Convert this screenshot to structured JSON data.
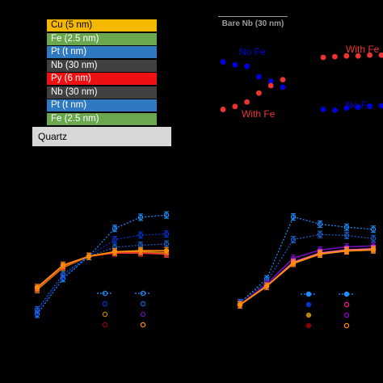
{
  "stack": [
    {
      "label": "Cu (5 nm)",
      "color": "#f5b800",
      "text_color": "#000000"
    },
    {
      "label": "Fe (2.5 nm)",
      "color": "#6aa84f",
      "text_color": "#ffffff"
    },
    {
      "label": "Pt (t nm)",
      "color": "#2f79c0",
      "text_color": "#ffffff"
    },
    {
      "label": "Nb (30 nm)",
      "color": "#404040",
      "text_color": "#ffffff"
    },
    {
      "label": "Py (6 nm)",
      "color": "#ee1111",
      "text_color": "#ffffff"
    },
    {
      "label": "Nb (30 nm)",
      "color": "#404040",
      "text_color": "#ffffff"
    },
    {
      "label": "Pt (t nm)",
      "color": "#2f79c0",
      "text_color": "#ffffff"
    },
    {
      "label": "Fe (2.5 nm)",
      "color": "#6aa84f",
      "text_color": "#ffffff"
    }
  ],
  "substrate": "Quartz",
  "top_right": {
    "title": "Bare Nb (30 nm)",
    "labels": {
      "no_fe": "No Fe",
      "with_fe": "With Fe"
    },
    "colors": {
      "no_fe": "#0000dd",
      "with_fe": "#ee3333"
    }
  },
  "chart_data": [
    {
      "type": "scatter",
      "title": "",
      "series": [
        {
          "name": "No Fe",
          "color": "#0000dd",
          "x": [
            1,
            2,
            3,
            4,
            5,
            6
          ],
          "y": [
            0.82,
            0.78,
            0.76,
            0.62,
            0.56,
            0.48
          ]
        },
        {
          "name": "With Fe",
          "color": "#ee3333",
          "x": [
            1,
            2,
            3,
            4,
            5,
            6
          ],
          "y": [
            0.18,
            0.22,
            0.28,
            0.4,
            0.5,
            0.58
          ]
        }
      ]
    },
    {
      "type": "scatter",
      "title": "",
      "series": [
        {
          "name": "With Fe",
          "color": "#ee3333",
          "x": [
            1,
            2,
            3,
            4,
            5,
            6
          ],
          "y": [
            0.88,
            0.89,
            0.9,
            0.9,
            0.91,
            0.91
          ]
        },
        {
          "name": "No Fe",
          "color": "#0000dd",
          "x": [
            1,
            2,
            3,
            4,
            5,
            6
          ],
          "y": [
            0.18,
            0.17,
            0.2,
            0.21,
            0.22,
            0.23
          ]
        }
      ]
    },
    {
      "type": "line",
      "title": "",
      "x": [
        0,
        1,
        2,
        3,
        4,
        5
      ],
      "series": [
        {
          "color": "#1e90ff",
          "style": "dotted",
          "y": [
            0.08,
            0.4,
            0.6,
            0.85,
            0.95,
            0.97
          ]
        },
        {
          "color": "#0033cc",
          "style": "dotted",
          "y": [
            0.1,
            0.42,
            0.6,
            0.75,
            0.79,
            0.8
          ]
        },
        {
          "color": "#1e5fcc",
          "style": "dotted",
          "y": [
            0.12,
            0.44,
            0.6,
            0.68,
            0.7,
            0.71
          ]
        },
        {
          "color": "#b8860b",
          "style": "solid",
          "y": [
            0.3,
            0.5,
            0.6,
            0.64,
            0.64,
            0.63
          ]
        },
        {
          "color": "#ee3333",
          "style": "solid",
          "y": [
            0.31,
            0.51,
            0.6,
            0.63,
            0.63,
            0.62
          ]
        },
        {
          "color": "#ff8c00",
          "style": "solid",
          "y": [
            0.32,
            0.52,
            0.6,
            0.64,
            0.65,
            0.65
          ]
        }
      ]
    },
    {
      "type": "line",
      "title": "",
      "x": [
        0,
        1,
        2,
        3,
        4,
        5
      ],
      "series": [
        {
          "color": "#1e90ff",
          "style": "dotted",
          "y": [
            0.12,
            0.35,
            0.95,
            0.88,
            0.85,
            0.83
          ]
        },
        {
          "color": "#1e5fcc",
          "style": "dotted",
          "y": [
            0.12,
            0.32,
            0.73,
            0.78,
            0.77,
            0.74
          ]
        },
        {
          "color": "#6a0dad",
          "style": "solid",
          "y": [
            0.1,
            0.3,
            0.55,
            0.63,
            0.66,
            0.67
          ]
        },
        {
          "color": "#ee3333",
          "style": "solid",
          "y": [
            0.1,
            0.28,
            0.5,
            0.6,
            0.63,
            0.64
          ]
        },
        {
          "color": "#ff69b4",
          "style": "solid",
          "y": [
            0.1,
            0.28,
            0.51,
            0.6,
            0.63,
            0.64
          ]
        },
        {
          "color": "#ff8c00",
          "style": "solid",
          "y": [
            0.1,
            0.28,
            0.5,
            0.59,
            0.62,
            0.63
          ]
        }
      ]
    }
  ],
  "legends": [
    {
      "rows": [
        [
          "#1e90ff",
          "#1e90ff"
        ],
        [
          "#0033cc",
          "#1e5fcc"
        ],
        [
          "#b8860b",
          "#6a0dad"
        ],
        [
          "#8b0000",
          "#ff8c00"
        ]
      ]
    },
    {
      "rows": [
        [
          "#1e90ff",
          "#1e90ff"
        ],
        [
          "#0033cc",
          "#ff1493"
        ],
        [
          "#b8860b",
          "#9400d3"
        ],
        [
          "#8b0000",
          "#ff8c00"
        ]
      ]
    }
  ]
}
